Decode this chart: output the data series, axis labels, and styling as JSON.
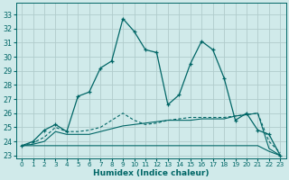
{
  "xlabel": "Humidex (Indice chaleur)",
  "bg_color": "#d0eaea",
  "grid_color": "#b0cccc",
  "line_color": "#006666",
  "ylim": [
    22.8,
    33.8
  ],
  "xlim": [
    -0.5,
    23.5
  ],
  "yticks": [
    23,
    24,
    25,
    26,
    27,
    28,
    29,
    30,
    31,
    32,
    33
  ],
  "xticks": [
    0,
    1,
    2,
    3,
    4,
    5,
    6,
    7,
    8,
    9,
    10,
    11,
    12,
    13,
    14,
    15,
    16,
    17,
    18,
    19,
    20,
    21,
    22,
    23
  ],
  "curve_main_x": [
    0,
    1,
    2,
    3,
    4,
    5,
    6,
    7,
    8,
    9,
    10,
    11,
    12,
    13,
    14,
    15,
    16,
    17,
    18,
    19,
    20,
    21,
    22,
    23
  ],
  "curve_main_y": [
    23.7,
    24.0,
    24.8,
    25.2,
    24.7,
    27.2,
    27.5,
    29.2,
    29.7,
    32.7,
    31.8,
    30.5,
    30.3,
    26.6,
    27.3,
    29.5,
    31.1,
    30.5,
    28.5,
    25.5,
    26.0,
    24.8,
    24.5,
    23.0
  ],
  "curve_dotted_x": [
    0,
    1,
    2,
    3,
    4,
    5,
    6,
    7,
    8,
    9,
    10,
    11,
    12,
    13,
    14,
    15,
    16,
    17,
    18,
    19,
    20,
    21,
    22,
    23
  ],
  "curve_dotted_y": [
    23.7,
    23.9,
    24.3,
    25.0,
    24.7,
    24.7,
    24.8,
    25.0,
    25.5,
    26.0,
    25.5,
    25.2,
    25.3,
    25.5,
    25.6,
    25.7,
    25.7,
    25.7,
    25.7,
    25.8,
    25.9,
    26.0,
    24.0,
    23.2
  ],
  "curve_flat_x": [
    0,
    1,
    2,
    3,
    4,
    5,
    6,
    7,
    8,
    9,
    10,
    11,
    12,
    13,
    14,
    15,
    16,
    17,
    18,
    19,
    20,
    21,
    22,
    23
  ],
  "curve_flat_y": [
    23.7,
    23.7,
    23.7,
    23.7,
    23.7,
    23.7,
    23.7,
    23.7,
    23.7,
    23.7,
    23.7,
    23.7,
    23.7,
    23.7,
    23.7,
    23.7,
    23.7,
    23.7,
    23.7,
    23.7,
    23.7,
    23.7,
    23.3,
    23.0
  ],
  "curve_rise_x": [
    0,
    1,
    2,
    3,
    4,
    5,
    6,
    7,
    8,
    9,
    10,
    11,
    12,
    13,
    14,
    15,
    16,
    17,
    18,
    19,
    20,
    21,
    22,
    23
  ],
  "curve_rise_y": [
    23.7,
    23.8,
    24.0,
    24.7,
    24.5,
    24.5,
    24.5,
    24.7,
    24.9,
    25.1,
    25.2,
    25.3,
    25.4,
    25.5,
    25.5,
    25.5,
    25.6,
    25.6,
    25.6,
    25.8,
    25.9,
    26.0,
    23.5,
    23.0
  ]
}
